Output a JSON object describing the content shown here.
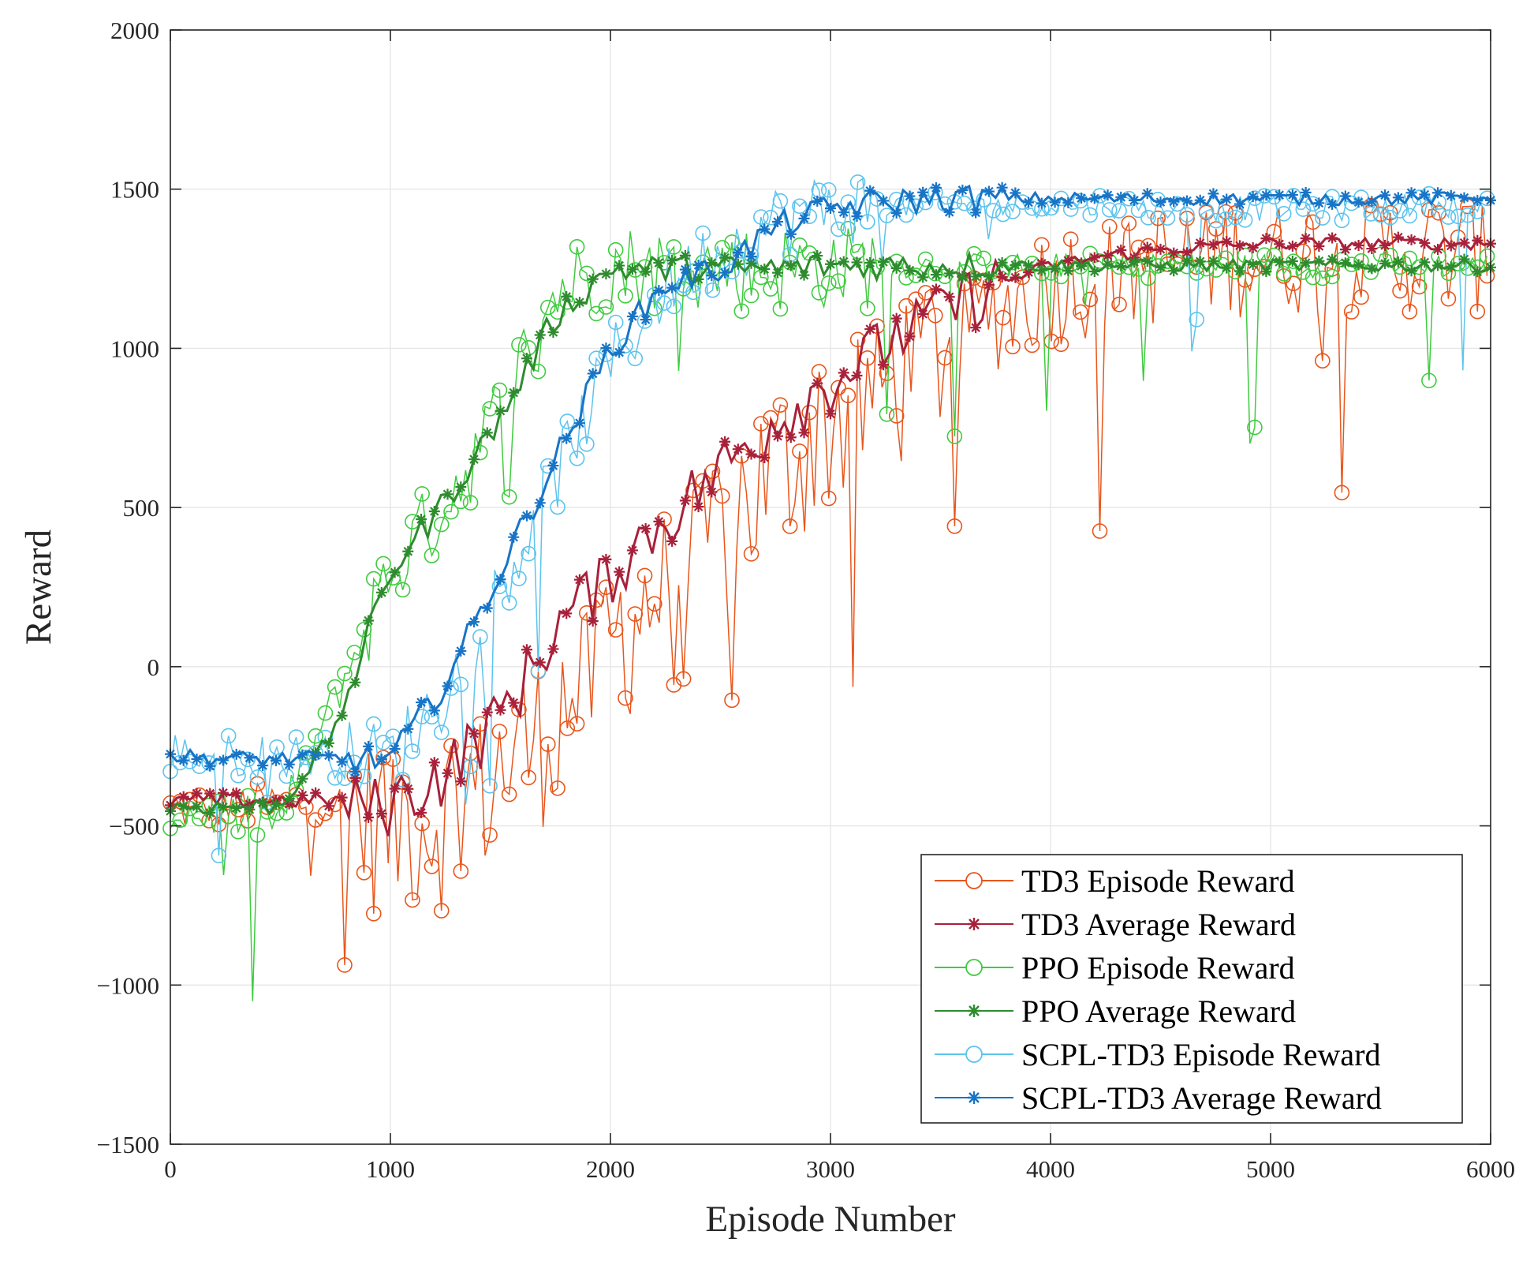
{
  "chart_data": {
    "type": "line",
    "title": "",
    "xlabel": "Episode Number",
    "ylabel": "Reward",
    "xlim": [
      0,
      6000
    ],
    "ylim": [
      -1500,
      2000
    ],
    "xticks": [
      "0",
      "1000",
      "2000",
      "3000",
      "4000",
      "5000",
      "6000"
    ],
    "yticks": [
      "−1500",
      "−1000",
      "−500",
      "0",
      "500",
      "1000",
      "1500",
      "2000"
    ],
    "grid": true,
    "legend_position": "bottom-right",
    "series": [
      {
        "name": "TD3 Episode Reward",
        "color": "#E8561C",
        "marker": "circle",
        "kind": "episode",
        "x": [
          0,
          250,
          500,
          750,
          1000,
          1250,
          1500,
          1750,
          2000,
          2250,
          2500,
          2750,
          3000,
          3250,
          3500,
          3750,
          4000,
          4250,
          4500,
          4750,
          5000,
          5250,
          5500,
          5750,
          6000
        ],
        "y": [
          -450,
          -440,
          -430,
          -430,
          -480,
          -450,
          -320,
          -150,
          80,
          280,
          450,
          620,
          780,
          900,
          1020,
          1120,
          1200,
          1240,
          1270,
          1290,
          1300,
          1300,
          1310,
          1300,
          1310
        ]
      },
      {
        "name": "TD3 Average Reward",
        "color": "#A8213A",
        "marker": "asterisk",
        "kind": "average",
        "x": [
          0,
          250,
          500,
          750,
          1000,
          1250,
          1500,
          1750,
          2000,
          2250,
          2500,
          2750,
          3000,
          3250,
          3500,
          3750,
          4000,
          4250,
          4500,
          4750,
          5000,
          5250,
          5500,
          5750,
          6000
        ],
        "y": [
          -420,
          -420,
          -420,
          -420,
          -430,
          -330,
          -150,
          120,
          300,
          470,
          620,
          780,
          900,
          1020,
          1120,
          1200,
          1260,
          1290,
          1310,
          1320,
          1330,
          1330,
          1330,
          1330,
          1330
        ]
      },
      {
        "name": "PPO Episode Reward",
        "color": "#3FCB3F",
        "marker": "circle",
        "kind": "episode",
        "x": [
          0,
          250,
          500,
          750,
          1000,
          1250,
          1500,
          1750,
          2000,
          2250,
          2500,
          2750,
          3000,
          3250,
          3500,
          3750,
          4000,
          4250,
          4500,
          4750,
          5000,
          5250,
          5500,
          5750,
          6000
        ],
        "y": [
          -460,
          -470,
          -480,
          -100,
          300,
          520,
          800,
          1180,
          1260,
          1250,
          1250,
          1250,
          1260,
          1260,
          1260,
          1260,
          1260,
          1260,
          1260,
          1260,
          1260,
          1260,
          1260,
          1260,
          1260
        ]
      },
      {
        "name": "PPO Average Reward",
        "color": "#2E8B2E",
        "marker": "asterisk",
        "kind": "average",
        "x": [
          0,
          250,
          500,
          750,
          1000,
          1250,
          1500,
          1750,
          2000,
          2250,
          2500,
          2750,
          3000,
          3250,
          3500,
          3750,
          4000,
          4250,
          4500,
          4750,
          5000,
          5250,
          5500,
          5750,
          6000
        ],
        "y": [
          -440,
          -440,
          -440,
          -200,
          300,
          520,
          780,
          1100,
          1250,
          1250,
          1250,
          1250,
          1260,
          1260,
          1260,
          1260,
          1260,
          1260,
          1260,
          1260,
          1260,
          1260,
          1260,
          1260,
          1260
        ]
      },
      {
        "name": "SCPL-TD3 Episode Reward",
        "color": "#5CC4EE",
        "marker": "circle",
        "kind": "episode",
        "x": [
          0,
          250,
          500,
          750,
          1000,
          1250,
          1500,
          1750,
          2000,
          2250,
          2500,
          2750,
          3000,
          3250,
          3500,
          3750,
          4000,
          4250,
          4500,
          4750,
          5000,
          5250,
          5500,
          5750,
          6000
        ],
        "y": [
          -270,
          -280,
          -280,
          -280,
          -290,
          -80,
          250,
          600,
          950,
          1200,
          1300,
          1400,
          1440,
          1450,
          1450,
          1450,
          1450,
          1450,
          1440,
          1440,
          1440,
          1440,
          1440,
          1450,
          1460
        ]
      },
      {
        "name": "SCPL-TD3 Average Reward",
        "color": "#1874C6",
        "marker": "asterisk",
        "kind": "average",
        "x": [
          0,
          250,
          500,
          750,
          1000,
          1250,
          1500,
          1750,
          2000,
          2250,
          2500,
          2750,
          3000,
          3250,
          3500,
          3750,
          4000,
          4250,
          4500,
          4750,
          5000,
          5250,
          5500,
          5750,
          6000
        ],
        "y": [
          -280,
          -290,
          -290,
          -290,
          -290,
          -50,
          300,
          650,
          1000,
          1200,
          1250,
          1380,
          1440,
          1460,
          1470,
          1470,
          1470,
          1470,
          1470,
          1470,
          1470,
          1470,
          1470,
          1470,
          1480
        ]
      }
    ]
  }
}
